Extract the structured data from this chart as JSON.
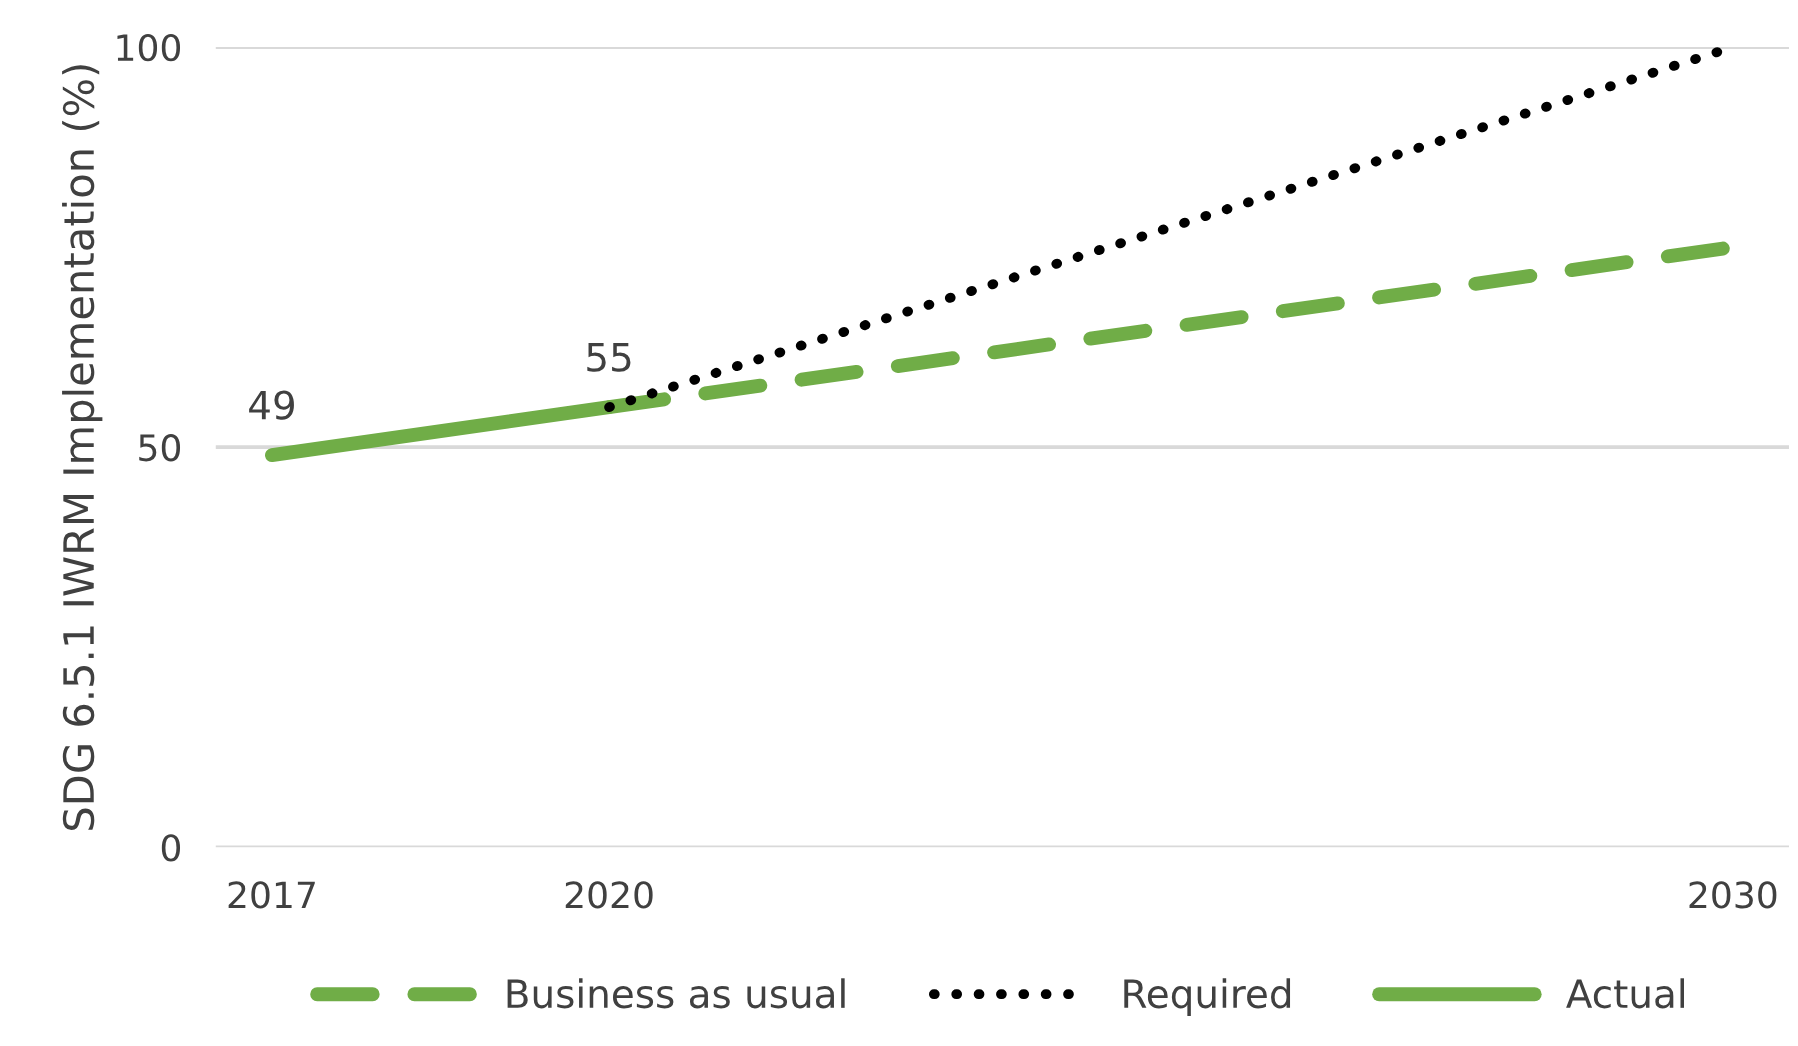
{
  "chart_data": {
    "type": "line",
    "ylabel": "SDG 6.5.1 IWRM Implementation (%)",
    "series": [
      {
        "name": "Business as usual",
        "color": "#70ad47",
        "line_style": "dashed",
        "x": [
          2020,
          2030
        ],
        "values": [
          55,
          75
        ]
      },
      {
        "name": "Required",
        "color": "#000000",
        "line_style": "dotted",
        "x": [
          2020,
          2030
        ],
        "values": [
          55,
          100
        ]
      },
      {
        "name": "Actual",
        "color": "#70ad47",
        "line_style": "solid",
        "x": [
          2017,
          2020
        ],
        "values": [
          49,
          55
        ],
        "value_labels": [
          "49",
          "55"
        ]
      }
    ],
    "xlim": [
      2016.5,
      2030.5
    ],
    "xticks": [
      2017,
      2020,
      2030
    ],
    "ylim": [
      0,
      100
    ],
    "yticks": [
      0,
      50,
      100
    ],
    "grid": "y",
    "legend": "bottom",
    "marker": "none"
  }
}
